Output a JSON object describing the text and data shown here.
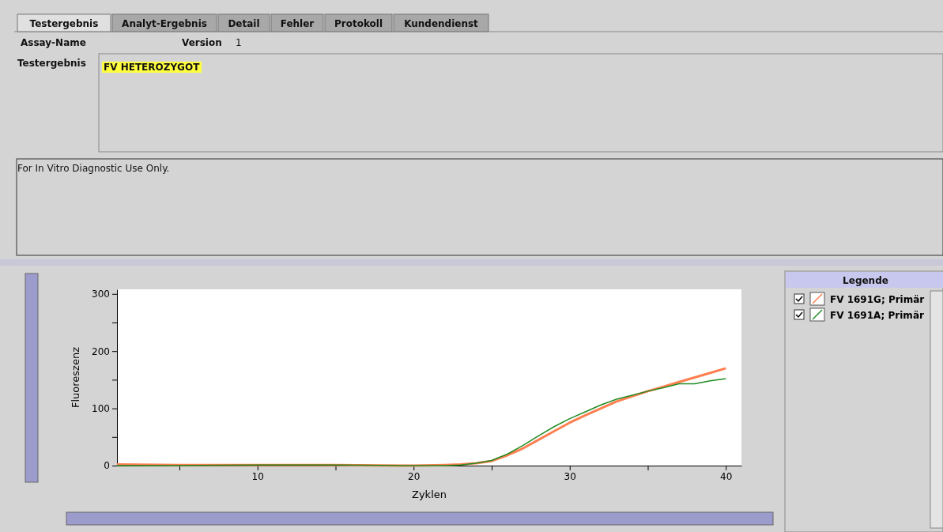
{
  "chart_data": {
    "type": "line",
    "annotations": [
      "Testergebnis",
      "Analyt-Ergebnis",
      "Detail",
      "Fehler",
      "Protokoll",
      "Kundendienst",
      "Assay-Name",
      "Version",
      "1",
      "Testergebnis",
      "FV HETEROZYGOT",
      "For In Vitro Diagnostic Use Only.",
      "Legende"
    ],
    "xlabel": "Zyklen",
    "ylabel": "Fluoreszenz",
    "x": [
      1,
      5,
      10,
      15,
      20,
      22,
      23,
      24,
      25,
      26,
      27,
      28,
      29,
      30,
      31,
      32,
      33,
      34,
      35,
      36,
      37,
      38,
      39,
      40
    ],
    "series": [
      {
        "name": "FV 1691G; Primär",
        "color": "#ff7f50",
        "values": [
          2,
          1,
          1,
          1,
          0,
          1,
          2,
          4,
          8,
          18,
          30,
          45,
          60,
          75,
          88,
          100,
          112,
          121,
          130,
          138,
          146,
          154,
          162,
          170
        ]
      },
      {
        "name": "FV 1691A; Primär",
        "color": "#228b22",
        "values": [
          0,
          0,
          1,
          1,
          0,
          0,
          1,
          4,
          9,
          20,
          35,
          52,
          68,
          82,
          94,
          106,
          116,
          123,
          130,
          136,
          143,
          143,
          148,
          152
        ]
      }
    ],
    "xlim": [
      1,
      41
    ],
    "xticks": [
      {
        "value": 5,
        "label": null
      },
      10,
      {
        "value": 15,
        "label": null
      },
      20,
      {
        "value": 25,
        "label": null
      },
      30,
      {
        "value": 35,
        "label": null
      },
      40
    ],
    "ylim": [
      0,
      308
    ],
    "yticks": [
      0,
      {
        "value": 50,
        "label": null
      },
      100,
      {
        "value": 150,
        "label": null
      },
      200,
      {
        "value": 250,
        "label": null
      },
      300
    ],
    "grid": false,
    "legend": "right",
    "marker": "none",
    "line_style": "solid"
  }
}
